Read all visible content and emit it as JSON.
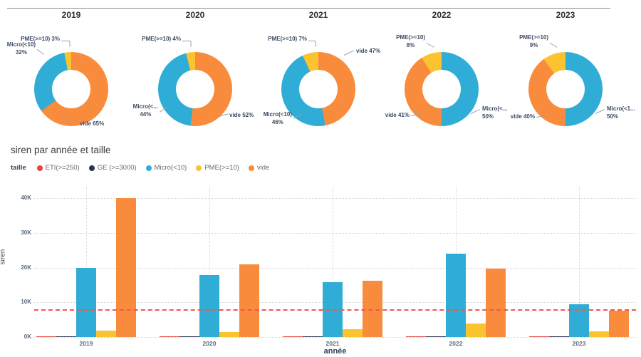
{
  "colors": {
    "series": {
      "ETI(>=250)": "#e8443c",
      "GE (>=3000)": "#2a3350",
      "Micro(<10)": "#2fadd6",
      "PME(>=10)": "#fbc32f",
      "vide": "#f98b3d"
    },
    "reference_line": "#f2574f",
    "grid": "#d6d6d6",
    "donut_label_text": "#3b4a63",
    "tick_text": "#5a6a80"
  },
  "chart_data": [
    {
      "type": "pie",
      "donut": true,
      "title": "2019",
      "slices": [
        {
          "key": "vide",
          "name": "vide",
          "pct": 65,
          "label_lines": [
            "vide 65%"
          ]
        },
        {
          "key": "micro",
          "name": "Micro(<10)",
          "pct": 32,
          "label_lines": [
            "Micro(<10)",
            "32%"
          ]
        },
        {
          "key": "pme",
          "name": "PME(>=10)",
          "pct": 3,
          "label_lines": [
            "PME(>=10) 3%"
          ]
        }
      ]
    },
    {
      "type": "pie",
      "donut": true,
      "title": "2020",
      "slices": [
        {
          "key": "vide",
          "name": "vide",
          "pct": 52,
          "label_lines": [
            "vide 52%"
          ]
        },
        {
          "key": "micro",
          "name": "Micro(<10)",
          "pct": 44,
          "label_lines": [
            "Micro(<...",
            "44%"
          ]
        },
        {
          "key": "pme",
          "name": "PME(>=10)",
          "pct": 4,
          "label_lines": [
            "PME(>=10) 4%"
          ]
        }
      ]
    },
    {
      "type": "pie",
      "donut": true,
      "title": "2021",
      "slices": [
        {
          "key": "vide",
          "name": "vide",
          "pct": 47,
          "label_lines": [
            "vide 47%"
          ]
        },
        {
          "key": "micro",
          "name": "Micro(<10)",
          "pct": 46,
          "label_lines": [
            "Micro(<10)",
            "46%"
          ]
        },
        {
          "key": "pme",
          "name": "PME(>=10)",
          "pct": 7,
          "label_lines": [
            "PME(>=10) 7%"
          ]
        }
      ]
    },
    {
      "type": "pie",
      "donut": true,
      "title": "2022",
      "slices": [
        {
          "key": "micro",
          "name": "Micro(<10)",
          "pct": 50,
          "label_lines": [
            "Micro(<...",
            "50%"
          ]
        },
        {
          "key": "vide",
          "name": "vide",
          "pct": 41,
          "label_lines": [
            "vide 41%"
          ]
        },
        {
          "key": "pme",
          "name": "PME(>=10)",
          "pct": 8,
          "label_lines": [
            "PME(>=10)",
            "8%"
          ]
        }
      ]
    },
    {
      "type": "pie",
      "donut": true,
      "title": "2023",
      "slices": [
        {
          "key": "micro",
          "name": "Micro(<10)",
          "pct": 50,
          "label_lines": [
            "Micro(<1...",
            "50%"
          ]
        },
        {
          "key": "vide",
          "name": "vide",
          "pct": 40,
          "label_lines": [
            "vide 40%"
          ]
        },
        {
          "key": "pme",
          "name": "PME(>=10)",
          "pct": 9,
          "label_lines": [
            "PME(>=10)",
            "9%"
          ]
        }
      ]
    },
    {
      "type": "bar",
      "title": "siren par année et taille",
      "xlabel": "année",
      "ylabel": "siren",
      "legend_title": "taille",
      "categories": [
        "2019",
        "2020",
        "2021",
        "2022",
        "2023"
      ],
      "series": [
        {
          "name": "ETI(>=250)",
          "values": [
            300,
            300,
            300,
            300,
            300
          ]
        },
        {
          "name": "GE (>=3000)",
          "values": [
            150,
            150,
            150,
            150,
            150
          ]
        },
        {
          "name": "Micro(<10)",
          "values": [
            20000,
            17900,
            15800,
            24000,
            9400
          ]
        },
        {
          "name": "PME(>=10)",
          "values": [
            1900,
            1400,
            2300,
            3900,
            1600
          ]
        },
        {
          "name": "vide",
          "values": [
            40000,
            21000,
            16200,
            19700,
            7600
          ]
        }
      ],
      "yticks": [
        "0K",
        "10K",
        "20K",
        "30K",
        "40K"
      ],
      "ytick_values": [
        0,
        10000,
        20000,
        30000,
        40000
      ],
      "ylim": [
        0,
        43300
      ],
      "reference_line": 8000,
      "grid": true,
      "legend_position": "top"
    }
  ]
}
